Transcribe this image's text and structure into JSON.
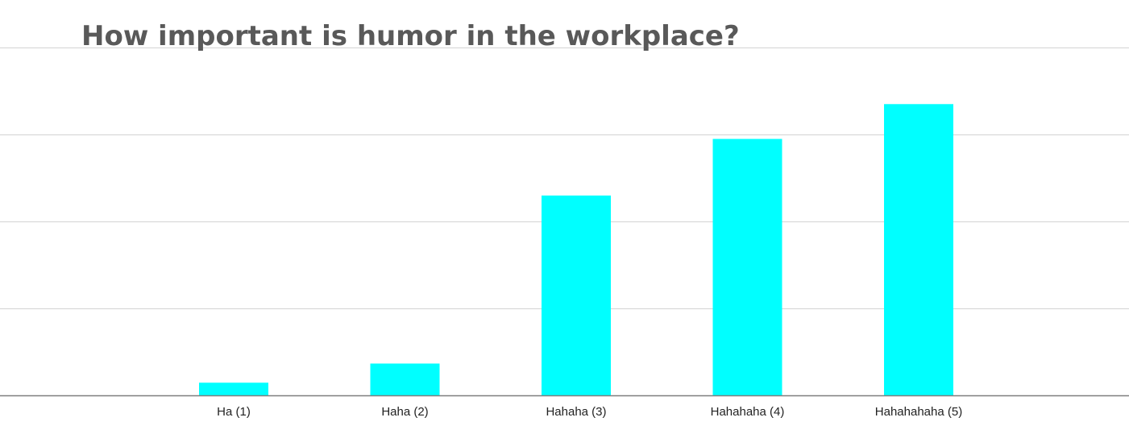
{
  "chart_data": {
    "type": "bar",
    "title": "How important is humor in the workplace?",
    "xlabel": "",
    "ylabel": "",
    "categories": [
      "Ha (1)",
      "Haha (2)",
      "Hahaha (3)",
      "Hahahaha (4)",
      "Hahahahaha (5)"
    ],
    "values": [
      1.5,
      3.7,
      23,
      29.5,
      33.5
    ],
    "ylim": [
      0,
      40
    ],
    "grid_values": [
      0,
      10,
      20,
      30,
      40
    ],
    "grid": true,
    "legend": "none",
    "bar_color": "#00ffff"
  }
}
